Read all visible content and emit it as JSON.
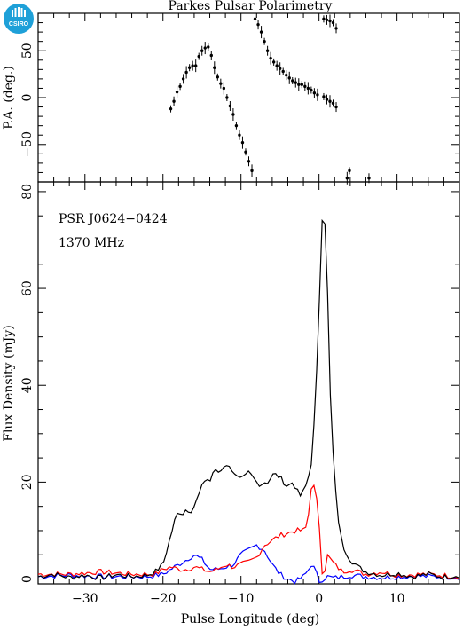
{
  "logo": {
    "text": "CSIRO"
  },
  "chart_data": [
    {
      "type": "scatter",
      "title": "Parkes Pulsar Polarimetry",
      "xlabel": "",
      "ylabel": "P.A. (deg.)",
      "xlim": [
        -36,
        18
      ],
      "ylim": [
        -90,
        90
      ],
      "yticks": [
        -50,
        0,
        50
      ],
      "grid": false,
      "series": [
        {
          "color": "#000000",
          "x": [
            -19.0,
            -18.6,
            -18.2,
            -17.8,
            -17.4,
            -17.0,
            -16.6,
            -16.2,
            -15.8,
            -15.4,
            -15.0,
            -14.6,
            -14.2,
            -13.8,
            -13.4,
            -13.0,
            -12.6,
            -12.2,
            -11.8,
            -11.4,
            -11.0,
            -10.6,
            -10.2,
            -9.8,
            -9.4,
            -9.0,
            -8.6,
            -8.2,
            -7.8,
            -7.4,
            -7.0,
            -6.6,
            -6.2,
            -5.8,
            -5.4,
            -5.0,
            -4.6,
            -4.2,
            -3.8,
            -3.4,
            -3.0,
            -2.6,
            -2.2,
            -1.8,
            -1.4,
            -1.0,
            -0.6,
            -0.2,
            0.6,
            1.0,
            1.4,
            1.8,
            2.2,
            3.6,
            3.9,
            6.4
          ],
          "y": [
            -12,
            -4,
            6,
            12,
            20,
            27,
            32,
            34,
            34,
            44,
            50,
            53,
            54,
            45,
            32,
            22,
            15,
            10,
            0,
            -9,
            -18,
            -30,
            -40,
            -48,
            -58,
            -68,
            -78,
            84,
            78,
            70,
            60,
            50,
            42,
            38,
            34,
            31,
            28,
            24,
            21,
            18,
            16,
            14,
            14,
            12,
            10,
            8,
            5,
            3,
            1,
            -2,
            -4,
            -6,
            -10,
            -86,
            -78,
            -86
          ]
        },
        {
          "color": "#000000",
          "x": [
            0.6,
            1.0,
            1.4,
            1.8,
            2.2
          ],
          "y": [
            84,
            83,
            82,
            80,
            74
          ]
        }
      ]
    },
    {
      "type": "line",
      "title": "",
      "xlabel": "Pulse Longitude (deg)",
      "ylabel": "Flux Density (mJy)",
      "xlim": [
        -36,
        18
      ],
      "ylim": [
        -1,
        82
      ],
      "xticks": [
        -30,
        -20,
        -10,
        0,
        10
      ],
      "yticks": [
        0,
        20,
        40,
        60,
        80
      ],
      "grid": false,
      "annotations": [
        "PSR J0624−0424",
        "1370 MHz"
      ],
      "series": [
        {
          "color": "#000000",
          "x": [
            -36,
            -34,
            -32,
            -30,
            -28,
            -26,
            -24,
            -22,
            -21,
            -20,
            -19.5,
            -19,
            -18.5,
            -18,
            -17.5,
            -17,
            -16.5,
            -16,
            -15.5,
            -15,
            -14.5,
            -14,
            -13.5,
            -13,
            -12.5,
            -12,
            -11.5,
            -11,
            -10.5,
            -10,
            -9.5,
            -9,
            -8.5,
            -8,
            -7.5,
            -7,
            -6.5,
            -6,
            -5.5,
            -5,
            -4.5,
            -4,
            -3.5,
            -3,
            -2.5,
            -2,
            -1.5,
            -1,
            -0.5,
            0,
            0.3,
            0.6,
            1,
            1.5,
            2,
            2.5,
            3,
            4,
            5,
            6,
            8,
            10,
            12,
            14,
            16,
            18
          ],
          "y": [
            0.5,
            1.0,
            0.3,
            0.8,
            0.2,
            0.9,
            0.5,
            0.8,
            1.5,
            3,
            6,
            9,
            12,
            14,
            13.5,
            14.5,
            14,
            15,
            17,
            19,
            21,
            20,
            22.5,
            22,
            22.5,
            24,
            23,
            22.5,
            21,
            20.5,
            21,
            22,
            21,
            20,
            19.5,
            20,
            20,
            21.5,
            21.5,
            21,
            20,
            19,
            20,
            19,
            17,
            18,
            20,
            24,
            35,
            55,
            72,
            78.5,
            65,
            35,
            20,
            12,
            7,
            4,
            2.5,
            1.5,
            0.8,
            1.2,
            0.5,
            1.0,
            0.4,
            0.8
          ]
        },
        {
          "color": "#ff0000",
          "x": [
            -36,
            -32,
            -28,
            -24,
            -21,
            -20,
            -19,
            -18,
            -17,
            -16,
            -15,
            -14,
            -13,
            -12,
            -11,
            -10,
            -9,
            -8,
            -7,
            -6,
            -5,
            -4,
            -3,
            -2,
            -1.5,
            -1,
            -0.5,
            0,
            0.5,
            1,
            1.5,
            2,
            3,
            4,
            6,
            8,
            10,
            14,
            18
          ],
          "y": [
            1,
            1,
            1.5,
            1,
            1,
            2,
            2.5,
            2,
            2,
            2.5,
            2,
            1.5,
            2,
            3,
            2.5,
            3,
            3.5,
            4.5,
            7,
            8,
            9,
            9.5,
            10,
            10,
            11,
            19,
            19,
            12,
            -1,
            5,
            4,
            3,
            1.5,
            2,
            1,
            1.5,
            0.8,
            1.0,
            0.5
          ],
          "name": ""
        },
        {
          "color": "#0000ff",
          "x": [
            -36,
            -32,
            -28,
            -24,
            -22,
            -20,
            -19,
            -18,
            -17,
            -16,
            -15,
            -14,
            -13,
            -12,
            -11,
            -10,
            -9,
            -8,
            -7,
            -6,
            -5,
            -4,
            -3,
            -2,
            -1.5,
            -1,
            -0.5,
            0,
            1,
            2,
            4,
            6,
            8,
            12,
            18
          ],
          "y": [
            0.5,
            0.8,
            0.5,
            0.5,
            0.5,
            1,
            2,
            3,
            4,
            5,
            4,
            2,
            2,
            2.5,
            3,
            5,
            6,
            7,
            6,
            3,
            1,
            0,
            -0.5,
            0.5,
            1.5,
            3,
            2,
            -0.5,
            0.5,
            0.2,
            0.8,
            0.5,
            0.3,
            0.6,
            0.4
          ]
        }
      ]
    }
  ]
}
